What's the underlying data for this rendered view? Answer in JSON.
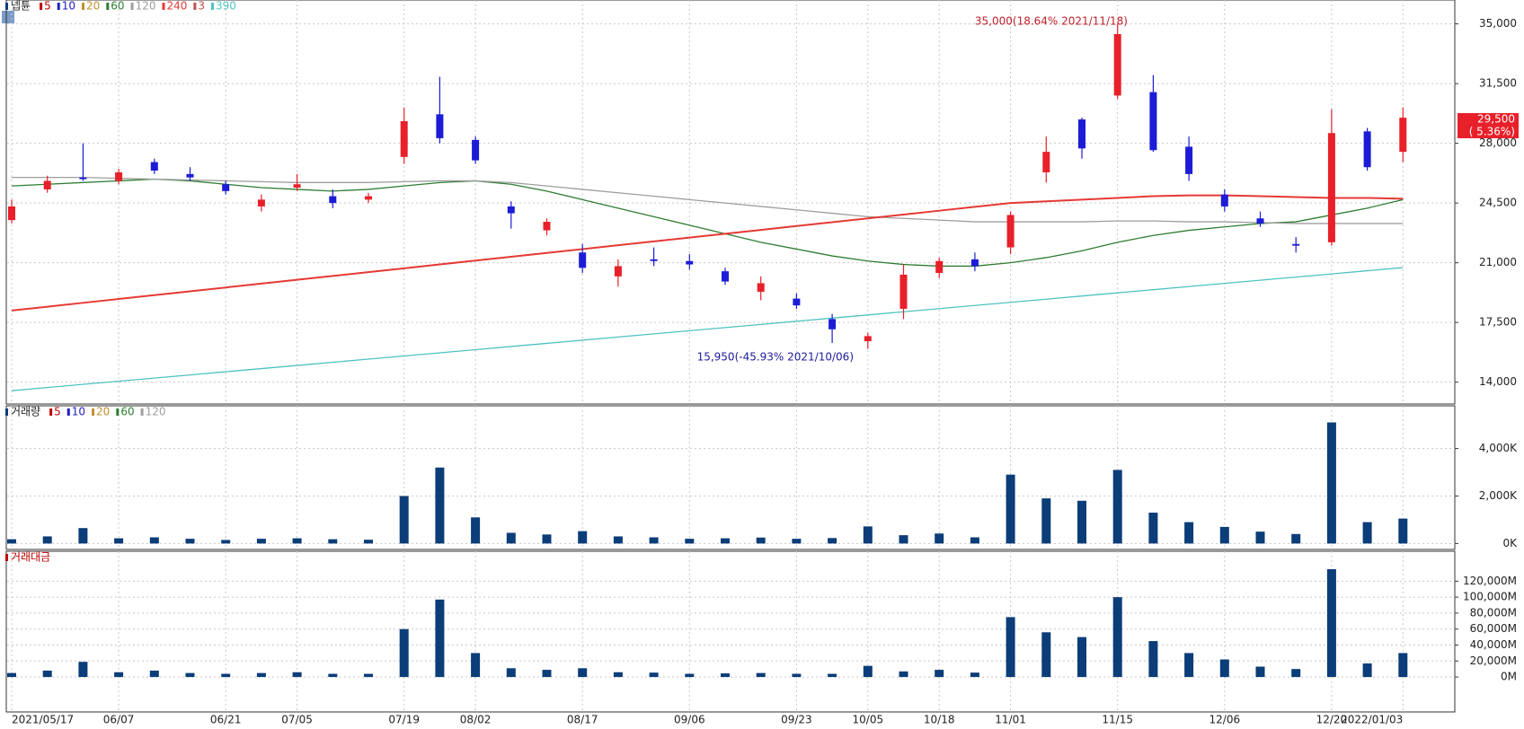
{
  "chart_data": [
    {
      "type": "candlestick",
      "name": "넵튠",
      "up_color": "#e8202a",
      "down_color": "#1c1cd6",
      "open": [
        23500,
        25300,
        26000,
        25800,
        26900,
        26200,
        25600,
        24300,
        25400,
        24900,
        24700,
        27200,
        29700,
        28200,
        24300,
        22900,
        21600,
        20200,
        21200,
        21100,
        20500,
        19300,
        18900,
        17700,
        16400,
        18300,
        20400,
        21200,
        21900,
        26300,
        29400,
        30800,
        31000,
        27800,
        25000,
        23600,
        22100,
        22200,
        28700,
        27500
      ],
      "high": [
        24700,
        26100,
        28000,
        26500,
        27100,
        26600,
        25800,
        25000,
        26200,
        25300,
        25100,
        30100,
        31900,
        28400,
        24600,
        23600,
        22100,
        21200,
        21900,
        21500,
        20700,
        20200,
        19200,
        18000,
        16900,
        20900,
        21300,
        21600,
        24000,
        28400,
        29500,
        35000,
        32000,
        28400,
        25300,
        24000,
        22500,
        30000,
        28900,
        30100
      ],
      "low": [
        23300,
        25100,
        25800,
        25600,
        26200,
        25800,
        25000,
        24000,
        25200,
        24200,
        24500,
        26800,
        28000,
        26800,
        23000,
        22600,
        20400,
        19600,
        20800,
        20600,
        19700,
        18800,
        18300,
        16300,
        15950,
        17700,
        20100,
        20500,
        21500,
        25700,
        27100,
        30600,
        27500,
        25800,
        24000,
        23100,
        21600,
        22000,
        26400,
        26900
      ],
      "close": [
        24300,
        25800,
        25900,
        26300,
        26400,
        26000,
        25200,
        24700,
        25600,
        24500,
        24900,
        29300,
        28300,
        27000,
        23900,
        23400,
        20700,
        20800,
        21100,
        20900,
        19900,
        19800,
        18500,
        17100,
        16700,
        20300,
        21100,
        20800,
        23800,
        27500,
        27700,
        34400,
        27600,
        26200,
        24300,
        23300,
        22000,
        28600,
        26600,
        29500
      ],
      "series": [
        {
          "name": "5",
          "color": "#c00000"
        },
        {
          "name": "10",
          "color": "#2020c0"
        },
        {
          "name": "20",
          "color": "#c09030"
        },
        {
          "name": "60",
          "color": "#2e7d32",
          "values": [
            25500,
            25600,
            25700,
            25800,
            25900,
            25800,
            25600,
            25400,
            25300,
            25200,
            25300,
            25500,
            25700,
            25800,
            25600,
            25200,
            24700,
            24200,
            23700,
            23200,
            22700,
            22200,
            21800,
            21400,
            21100,
            20900,
            20800,
            20800,
            21000,
            21300,
            21700,
            22200,
            22600,
            22900,
            23100,
            23300,
            23400,
            23800,
            24200,
            24700
          ]
        },
        {
          "name": "120",
          "color": "#9e9e9e",
          "values": [
            26000,
            26000,
            26000,
            25950,
            25900,
            25850,
            25800,
            25750,
            25700,
            25700,
            25700,
            25750,
            25800,
            25800,
            25700,
            25500,
            25300,
            25100,
            24900,
            24700,
            24500,
            24300,
            24100,
            23900,
            23700,
            23600,
            23500,
            23400,
            23400,
            23400,
            23400,
            23450,
            23450,
            23400,
            23400,
            23350,
            23300,
            23300,
            23300,
            23300
          ]
        },
        {
          "name": "240",
          "color": "#e53935",
          "values": [
            18200,
            18425,
            18650,
            18875,
            19100,
            19325,
            19550,
            19775,
            20000,
            20225,
            20450,
            20675,
            20900,
            21125,
            21350,
            21575,
            21800,
            22025,
            22250,
            22475,
            22700,
            22925,
            23150,
            23375,
            23600,
            23825,
            24050,
            24275,
            24500,
            24600,
            24700,
            24800,
            24900,
            24950,
            24950,
            24900,
            24850,
            24800,
            24800,
            24750
          ]
        },
        {
          "name": "3",
          "color": "#c05050"
        },
        {
          "name": "390",
          "color": "#4fc3c0",
          "values": [
            13500,
            13685,
            13870,
            14055,
            14240,
            14425,
            14610,
            14795,
            14980,
            15165,
            15350,
            15535,
            15720,
            15905,
            16090,
            16275,
            16460,
            16645,
            16830,
            17015,
            17200,
            17385,
            17570,
            17755,
            17940,
            18125,
            18310,
            18495,
            18680,
            18865,
            19050,
            19235,
            19420,
            19605,
            19790,
            19975,
            20160,
            20345,
            20530,
            20715
          ]
        }
      ],
      "annotations": [
        "35,000(18.64% 2021/11/18)",
        "15,950(-45.93% 2021/10/06)",
        "29,500",
        "( 5.36%)"
      ],
      "ylim": [
        12720,
        36400
      ],
      "yticks": [
        {
          "value": 14000,
          "label": "14,000"
        },
        {
          "value": 17500,
          "label": "17,500"
        },
        {
          "value": 21000,
          "label": "21,000"
        },
        {
          "value": 24500,
          "label": "24,500"
        },
        {
          "value": 28000,
          "label": "28,000"
        },
        {
          "value": 31500,
          "label": "31,500"
        },
        {
          "value": 35000,
          "label": "35,000"
        }
      ],
      "grid": true
    },
    {
      "type": "bar",
      "name": "거래량",
      "color": "#0b3d78",
      "values": [
        180000,
        300000,
        650000,
        220000,
        260000,
        200000,
        150000,
        200000,
        220000,
        180000,
        160000,
        2000000,
        3200000,
        1100000,
        450000,
        380000,
        520000,
        300000,
        260000,
        200000,
        220000,
        250000,
        200000,
        230000,
        720000,
        350000,
        420000,
        260000,
        2900000,
        1900000,
        1800000,
        3100000,
        1300000,
        900000,
        700000,
        500000,
        400000,
        5100000,
        900000,
        1050000
      ],
      "series": [
        {
          "name": "5",
          "color": "#c00000"
        },
        {
          "name": "10",
          "color": "#2020c0"
        },
        {
          "name": "20",
          "color": "#c09030"
        },
        {
          "name": "60",
          "color": "#2e7d32"
        },
        {
          "name": "120",
          "color": "#9e9e9e"
        }
      ],
      "ylim": [
        -250000,
        5800000
      ],
      "yticks": [
        {
          "value": 0,
          "label": "0K"
        },
        {
          "value": 2000000,
          "label": "2,000K"
        },
        {
          "value": 4000000,
          "label": "4,000K"
        }
      ],
      "grid": true
    },
    {
      "type": "bar",
      "name": "거래대금",
      "color": "#0b3d78",
      "values": [
        5000,
        8000,
        19000,
        6000,
        8000,
        5000,
        4000,
        5000,
        6000,
        4000,
        4000,
        60000,
        97000,
        30000,
        11000,
        9000,
        11000,
        6000,
        5500,
        4000,
        4500,
        5000,
        4000,
        4000,
        14000,
        7000,
        9000,
        5500,
        75000,
        56000,
        50000,
        100000,
        45000,
        30000,
        22000,
        13000,
        10000,
        135000,
        17000,
        30000
      ],
      "categories": [
        "2021/05/17",
        null,
        null,
        "06/07",
        null,
        null,
        "06/21",
        null,
        "07/05",
        null,
        null,
        "07/19",
        null,
        "08/02",
        null,
        null,
        "08/17",
        null,
        null,
        "09/06",
        null,
        null,
        "09/23",
        null,
        "10/05",
        null,
        "10/18",
        null,
        "11/01",
        null,
        null,
        "11/15",
        null,
        null,
        "12/06",
        null,
        null,
        "12/20",
        null,
        "2022/01/03"
      ],
      "ylim": [
        -43750,
        157500
      ],
      "yticks": [
        {
          "value": 0,
          "label": "0M"
        },
        {
          "value": 20000,
          "label": "20,000M"
        },
        {
          "value": 40000,
          "label": "40,000M"
        },
        {
          "value": 60000,
          "label": "60,000M"
        },
        {
          "value": 80000,
          "label": "80,000M"
        },
        {
          "value": 100000,
          "label": "100,000M"
        },
        {
          "value": 120000,
          "label": "120,000M"
        }
      ],
      "grid": true
    }
  ]
}
